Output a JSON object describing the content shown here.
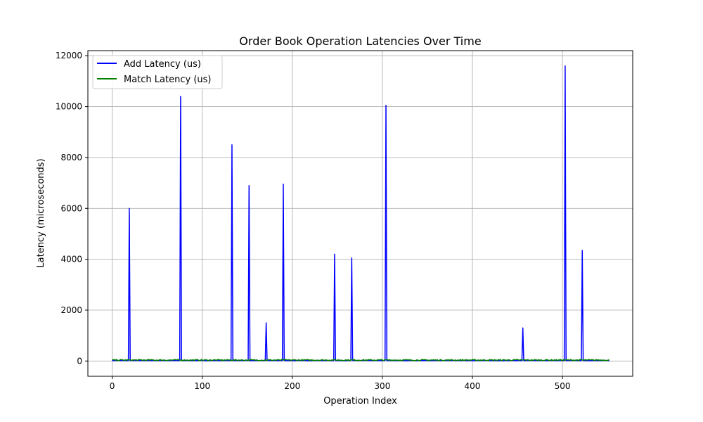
{
  "chart_data": {
    "type": "line",
    "title": "Order Book Operation Latencies Over Time",
    "xlabel": "Operation Index",
    "ylabel": "Latency (microseconds)",
    "xlim": [
      -27,
      578
    ],
    "ylim": [
      -600,
      12200
    ],
    "xticks": [
      0,
      100,
      200,
      300,
      400,
      500
    ],
    "yticks": [
      0,
      2000,
      4000,
      6000,
      8000,
      10000,
      12000
    ],
    "grid": true,
    "legend": "top-left",
    "series": [
      {
        "name": "Add Latency (us)",
        "color": "#0000ff",
        "base": 12,
        "length": 553,
        "spikes": [
          [
            19,
            6000
          ],
          [
            76,
            10400
          ],
          [
            133,
            8500
          ],
          [
            152,
            6900
          ],
          [
            171,
            1500
          ],
          [
            190,
            6950
          ],
          [
            247,
            4200
          ],
          [
            266,
            4050
          ],
          [
            304,
            10050
          ],
          [
            456,
            1300
          ],
          [
            503,
            11600
          ],
          [
            522,
            4350
          ]
        ]
      },
      {
        "name": "Match Latency (us)",
        "color": "#008000",
        "base": 30,
        "length": 553,
        "noise": 50
      }
    ]
  }
}
